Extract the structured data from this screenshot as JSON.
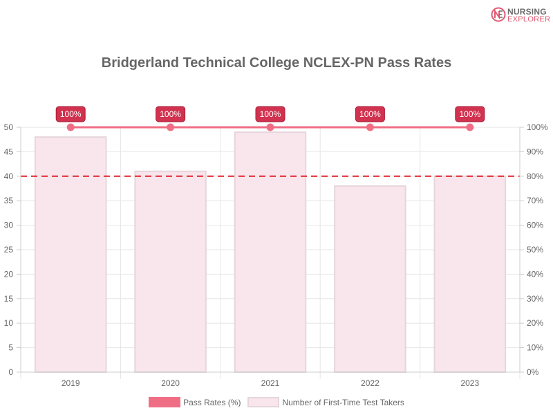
{
  "logo": {
    "line1": "NURSING",
    "line2": "EXPLORER",
    "badge_letters": "NE"
  },
  "chart_data": {
    "type": "bar",
    "title": "Bridgerland Technical College NCLEX-PN Pass Rates",
    "categories": [
      "2019",
      "2020",
      "2021",
      "2022",
      "2023"
    ],
    "series": [
      {
        "name": "Pass Rates (%)",
        "type": "line",
        "axis": "right",
        "values": [
          100,
          100,
          100,
          100,
          100
        ],
        "labels": [
          "100%",
          "100%",
          "100%",
          "100%",
          "100%"
        ],
        "color": "#f06e85"
      },
      {
        "name": "Number of First-Time Test Takers",
        "type": "bar",
        "axis": "left",
        "values": [
          48,
          41,
          49,
          38,
          40
        ],
        "color": "#f8e6ec",
        "border": "#e6d6dc"
      }
    ],
    "y_left": {
      "min": 0,
      "max": 50,
      "step": 5,
      "ticks": [
        "0",
        "5",
        "10",
        "15",
        "20",
        "25",
        "30",
        "35",
        "40",
        "45",
        "50"
      ]
    },
    "y_right": {
      "min": 0,
      "max": 100,
      "step": 10,
      "ticks": [
        "0%",
        "10%",
        "20%",
        "30%",
        "40%",
        "50%",
        "60%",
        "70%",
        "80%",
        "90%",
        "100%"
      ]
    },
    "reference_line": {
      "axis": "right",
      "value": 80,
      "style": "dashed",
      "color": "#e0202a"
    },
    "grid": true,
    "legend_position": "bottom",
    "label_color": "#d1324f"
  }
}
